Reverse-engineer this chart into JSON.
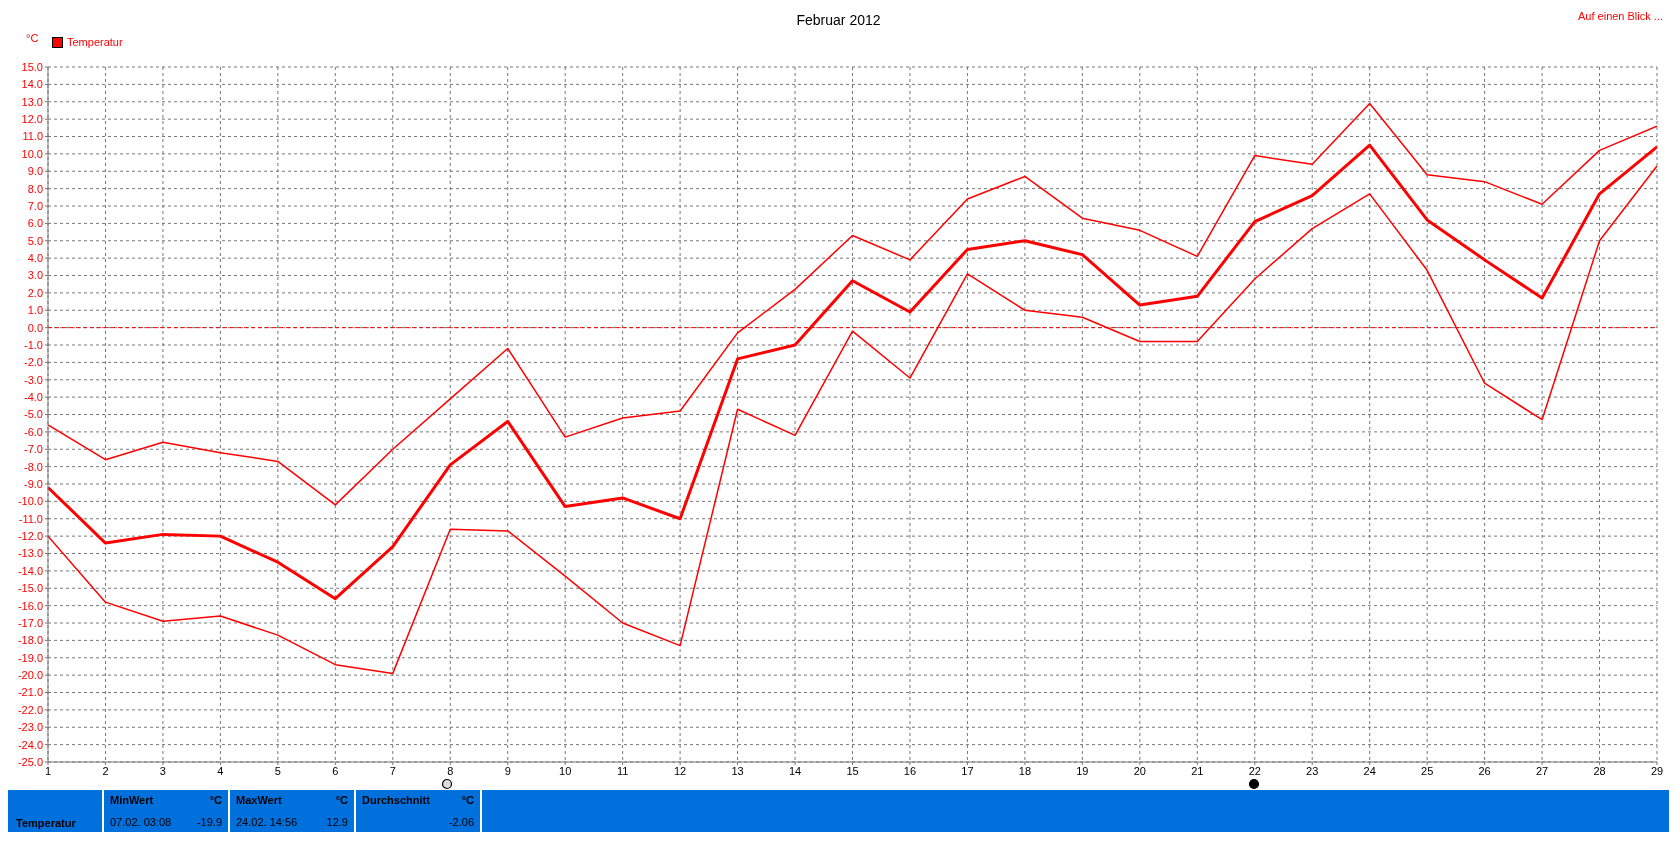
{
  "chart_data": {
    "type": "line",
    "title": "Februar 2012",
    "ylabel": "°C",
    "x": [
      1,
      2,
      3,
      4,
      5,
      6,
      7,
      8,
      9,
      10,
      11,
      12,
      13,
      14,
      15,
      16,
      17,
      18,
      19,
      20,
      21,
      22,
      23,
      24,
      25,
      26,
      27,
      28,
      29
    ],
    "series": [
      {
        "name": "Temperatur",
        "color": "#ff0000",
        "values": [
          -9.2,
          -12.4,
          -11.9,
          -12.0,
          -13.5,
          -15.6,
          -12.6,
          -7.9,
          -5.4,
          -10.3,
          -9.8,
          -11.0,
          -1.8,
          -1.0,
          2.7,
          0.9,
          4.5,
          5.0,
          4.2,
          1.3,
          1.8,
          6.1,
          7.6,
          10.5,
          6.2,
          3.9,
          1.7,
          7.7,
          10.4
        ]
      },
      {
        "color": "#ff0000",
        "values": [
          -5.6,
          -7.6,
          -6.6,
          -7.2,
          -7.7,
          -10.2,
          -7.0,
          -4.1,
          -1.2,
          -6.3,
          -5.2,
          -4.8,
          -0.3,
          2.2,
          5.3,
          3.9,
          7.4,
          8.7,
          6.3,
          5.6,
          4.1,
          9.9,
          9.4,
          12.9,
          8.8,
          8.4,
          7.1,
          10.2,
          11.6
        ]
      },
      {
        "color": "#ff0000",
        "values": [
          -12.0,
          -15.8,
          -16.9,
          -16.6,
          -17.7,
          -19.4,
          -19.9,
          -11.6,
          -11.7,
          -14.3,
          -17.0,
          -18.3,
          -4.7,
          -6.2,
          -0.2,
          -2.9,
          3.1,
          1.0,
          0.6,
          -0.8,
          -0.8,
          2.8,
          5.7,
          7.7,
          3.3,
          -3.2,
          -5.3,
          5.0,
          9.3
        ]
      }
    ],
    "xlim": [
      1,
      29
    ],
    "xticks": [
      1,
      2,
      3,
      4,
      5,
      6,
      7,
      8,
      9,
      10,
      11,
      12,
      13,
      14,
      15,
      16,
      17,
      18,
      19,
      20,
      21,
      22,
      23,
      24,
      25,
      26,
      27,
      28,
      29
    ],
    "ylim": [
      -25,
      15
    ],
    "yticks": [
      {
        "value": 15,
        "label": "15.0"
      },
      {
        "value": 14,
        "label": "14.0"
      },
      {
        "value": 13,
        "label": "13.0"
      },
      {
        "value": 12,
        "label": "12.0"
      },
      {
        "value": 11,
        "label": "11.0"
      },
      {
        "value": 10,
        "label": "10.0"
      },
      {
        "value": 9,
        "label": "9.0"
      },
      {
        "value": 8,
        "label": "8.0"
      },
      {
        "value": 7,
        "label": "7.0"
      },
      {
        "value": 6,
        "label": "6.0"
      },
      {
        "value": 5,
        "label": "5.0"
      },
      {
        "value": 4,
        "label": "4.0"
      },
      {
        "value": 3,
        "label": "3.0"
      },
      {
        "value": 2,
        "label": "2.0"
      },
      {
        "value": 1,
        "label": "1.0"
      },
      {
        "value": 0,
        "label": "0.0"
      },
      {
        "value": -1,
        "label": "-1.0"
      },
      {
        "value": -2,
        "label": "-2.0"
      },
      {
        "value": -3,
        "label": "-3.0"
      },
      {
        "value": -4,
        "label": "-4.0"
      },
      {
        "value": -5,
        "label": "-5.0"
      },
      {
        "value": -6,
        "label": "-6.0"
      },
      {
        "value": -7,
        "label": "-7.0"
      },
      {
        "value": -8,
        "label": "-8.0"
      },
      {
        "value": -9,
        "label": "-9.0"
      },
      {
        "value": -10,
        "label": "-10.0"
      },
      {
        "value": -11,
        "label": "-11.0"
      },
      {
        "value": -12,
        "label": "-12.0"
      },
      {
        "value": -13,
        "label": "-13.0"
      },
      {
        "value": -14,
        "label": "-14.0"
      },
      {
        "value": -15,
        "label": "-15.0"
      },
      {
        "value": -16,
        "label": "-16.0"
      },
      {
        "value": -17,
        "label": "-17.0"
      },
      {
        "value": -18,
        "label": "-18.0"
      },
      {
        "value": -19,
        "label": "-19.0"
      },
      {
        "value": -20,
        "label": "-20.0"
      },
      {
        "value": -21,
        "label": "-21.0"
      },
      {
        "value": -22,
        "label": "-22.0"
      },
      {
        "value": -23,
        "label": "-23.0"
      },
      {
        "value": -24,
        "label": "-24.0"
      },
      {
        "value": -25,
        "label": "-25.0"
      }
    ],
    "ref_lines": [
      {
        "axis": "y",
        "value": 0,
        "color": "#ff0000",
        "line_style": "dashed"
      }
    ],
    "grid": true,
    "legend": "top left",
    "marker": "none",
    "line_style": "solid",
    "annotations": [
      "Auf einen Blick ...",
      "Temperatur",
      "MinWert",
      "°C",
      "07.02.  03:08",
      "-19.9",
      "MaxWert",
      "°C",
      "24.02.  14:56",
      "12.9",
      "Durchschnitt",
      "°C",
      "-2.06"
    ]
  }
}
